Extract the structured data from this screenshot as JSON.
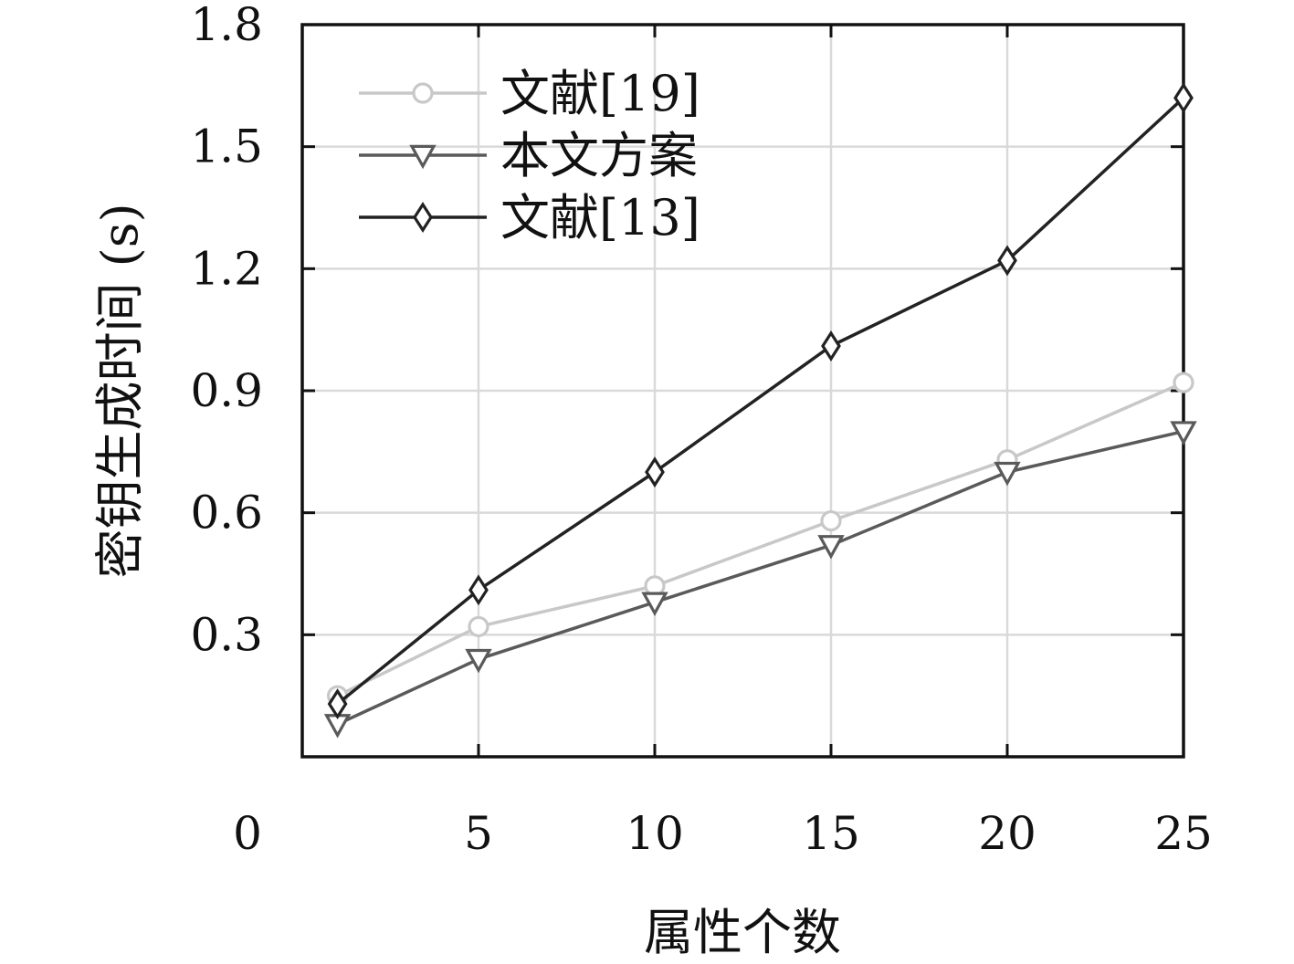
{
  "chart_data": {
    "type": "line",
    "xlabel": "属性个数",
    "ylabel": "密钥生成时间 (s)",
    "x": [
      1,
      5,
      10,
      15,
      20,
      25
    ],
    "xlim": [
      0,
      25
    ],
    "ylim": [
      0,
      1.8
    ],
    "xticks": [
      0,
      5,
      10,
      15,
      20,
      25
    ],
    "yticks": [
      0.3,
      0.6,
      0.9,
      1.2,
      1.5,
      1.8
    ],
    "xtick_labels": [
      "0",
      "5",
      "10",
      "15",
      "20",
      "25"
    ],
    "ytick_labels": [
      "0.3",
      "0.6",
      "0.9",
      "1.2",
      "1.5",
      "1.8"
    ],
    "grid": true,
    "legend_position": "top-left",
    "series": [
      {
        "name": "文献[19]",
        "marker": "circle",
        "color": "#c8c8c8",
        "values": [
          0.15,
          0.32,
          0.42,
          0.58,
          0.73,
          0.92
        ]
      },
      {
        "name": "本文方案",
        "marker": "triangle-down",
        "color": "#5a5a5a",
        "values": [
          0.08,
          0.24,
          0.38,
          0.52,
          0.7,
          0.8
        ]
      },
      {
        "name": "文献[13]",
        "marker": "diamond",
        "color": "#222222",
        "values": [
          0.13,
          0.41,
          0.7,
          1.01,
          1.22,
          1.62
        ]
      }
    ]
  }
}
